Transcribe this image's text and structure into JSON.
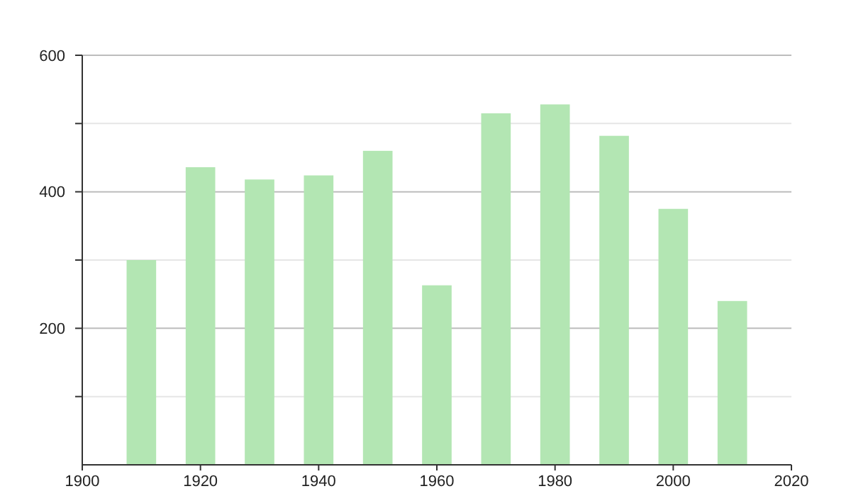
{
  "chart_data": {
    "type": "bar",
    "x": [
      1910,
      1920,
      1930,
      1940,
      1950,
      1960,
      1970,
      1980,
      1990,
      2000,
      2010
    ],
    "values": [
      300,
      436,
      418,
      424,
      460,
      263,
      515,
      528,
      482,
      375,
      240
    ],
    "color": "#b3e6b3",
    "xlim": [
      1900,
      2020
    ],
    "xticks": [
      1900,
      1920,
      1940,
      1960,
      1980,
      2000,
      2020
    ],
    "ylim": [
      0,
      600
    ],
    "yticks": [
      {
        "value": 100,
        "label": null
      },
      200,
      {
        "value": 300,
        "label": null
      },
      400,
      {
        "value": 500,
        "label": null
      },
      600
    ],
    "grid": "y"
  }
}
